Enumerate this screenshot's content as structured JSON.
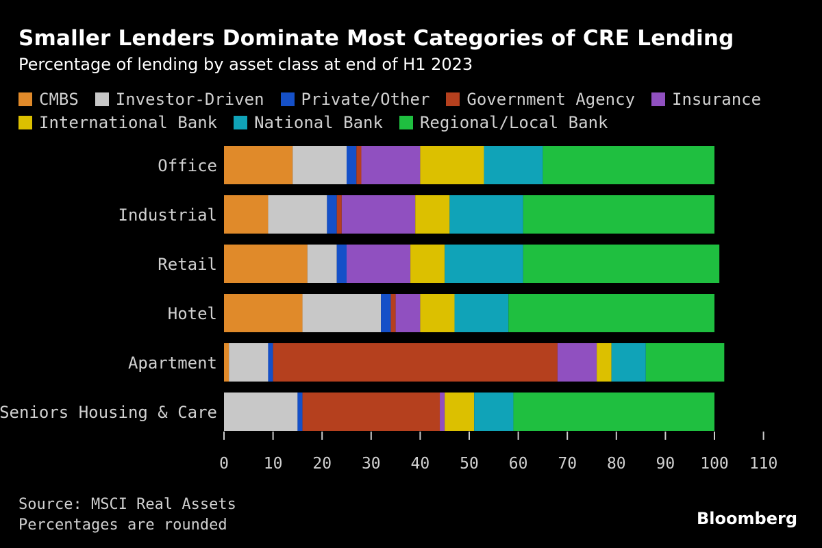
{
  "header": {
    "title": "Smaller Lenders Dominate Most Categories of CRE Lending",
    "subtitle": "Percentage of lending by asset class at end of H1 2023"
  },
  "footer": {
    "source": "Source: MSCI Real Assets",
    "note": "Percentages are rounded",
    "brand": "Bloomberg"
  },
  "chart_data": {
    "type": "bar",
    "orientation": "horizontal",
    "stacked": true,
    "title": "Smaller Lenders Dominate Most Categories of CRE Lending",
    "subtitle": "Percentage of lending by asset class at end of H1 2023",
    "xlabel": "",
    "ylabel": "",
    "xlim": [
      0,
      110
    ],
    "xticks": [
      0,
      10,
      20,
      30,
      40,
      50,
      60,
      70,
      80,
      90,
      100,
      110
    ],
    "grid": false,
    "legend_position": "top",
    "categories": [
      "Office",
      "Industrial",
      "Retail",
      "Hotel",
      "Apartment",
      "Seniors Housing & Care"
    ],
    "series": [
      {
        "name": "CMBS",
        "color": "#e08a2a",
        "values": [
          14,
          9,
          17,
          16,
          1,
          0
        ]
      },
      {
        "name": "Investor-Driven",
        "color": "#c8c8c8",
        "values": [
          11,
          12,
          6,
          16,
          8,
          15
        ]
      },
      {
        "name": "Private/Other",
        "color": "#1550c8",
        "values": [
          2,
          2,
          2,
          2,
          1,
          1
        ]
      },
      {
        "name": "Government Agency",
        "color": "#b5401e",
        "values": [
          1,
          1,
          0,
          1,
          58,
          28
        ]
      },
      {
        "name": "Insurance",
        "color": "#9050c0",
        "values": [
          12,
          15,
          13,
          5,
          8,
          1
        ]
      },
      {
        "name": "International Bank",
        "color": "#dcc000",
        "values": [
          13,
          7,
          7,
          7,
          3,
          6
        ]
      },
      {
        "name": "National Bank",
        "color": "#10a3b8",
        "values": [
          12,
          15,
          16,
          11,
          7,
          8
        ]
      },
      {
        "name": "Regional/Local Bank",
        "color": "#1fbf40",
        "values": [
          35,
          39,
          40,
          42,
          16,
          41
        ]
      }
    ]
  }
}
